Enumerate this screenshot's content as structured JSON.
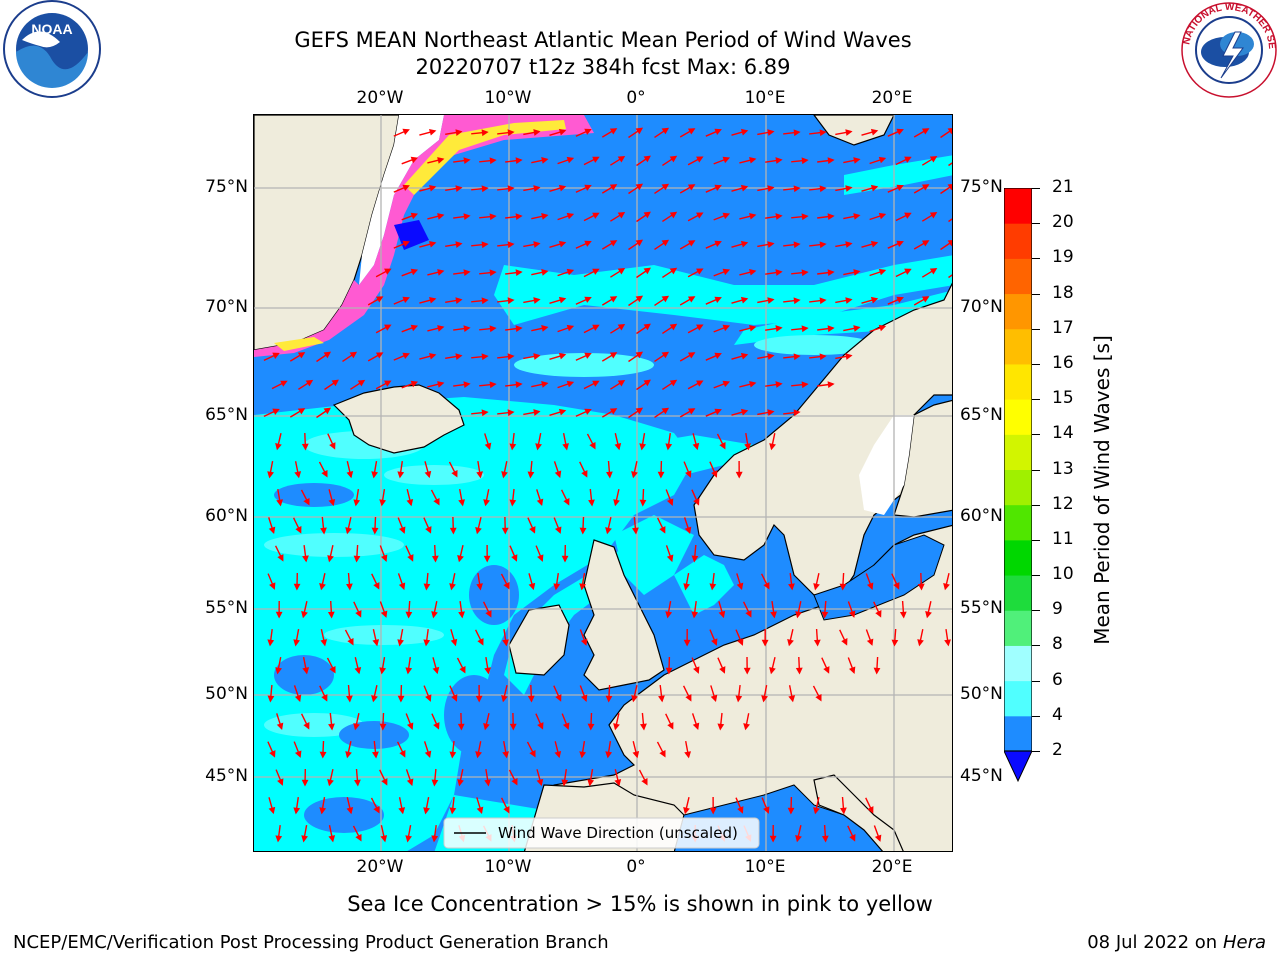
{
  "header": {
    "title_line1": "GEFS MEAN Northeast Atlantic Mean Period of Wind Waves",
    "title_line2": "20220707 t12z 384h fcst   Max: 6.89"
  },
  "logos": {
    "left": "NOAA",
    "right": "NATIONAL WEATHER SERVICE"
  },
  "map": {
    "lon_labels": [
      "20°W",
      "10°W",
      "0°",
      "10°E",
      "20°E"
    ],
    "lat_labels": [
      "75°N",
      "70°N",
      "65°N",
      "60°N",
      "55°N",
      "50°N",
      "45°N"
    ],
    "legend_label": "Wind Wave Direction (unscaled)",
    "colors": {
      "land": "#efecdc",
      "ice_white": "#ffffff",
      "ice_pink": "#ff5ad2",
      "ice_yellow": "#ffea3a",
      "band_0_2": "#0a0aff",
      "band_2_4": "#1e8cff",
      "band_4_6": "#00ffff",
      "band_6_8": "#50ffff",
      "arrow": "#ff0000",
      "grid": "#b4b4b4"
    }
  },
  "colorbar": {
    "title": "Mean Period of Wind Waves [s]",
    "ticks": [
      "2",
      "4",
      "6",
      "8",
      "9",
      "10",
      "11",
      "12",
      "13",
      "14",
      "15",
      "16",
      "17",
      "18",
      "19",
      "20",
      "21"
    ],
    "colors": [
      "#1e8cff",
      "#00ffff",
      "#50ffff",
      "#a0ffff",
      "#50f07a",
      "#1edc3c",
      "#00d700",
      "#50e600",
      "#a0f000",
      "#d2f500",
      "#ffff00",
      "#ffe600",
      "#ffbe00",
      "#ff9600",
      "#ff6400",
      "#ff3c00",
      "#ff0000"
    ],
    "extend_low_color": "#0a0aff"
  },
  "caption": "Sea Ice Concentration > 15% is shown in pink to yellow",
  "footer": {
    "left": "NCEP/EMC/Verification Post Processing Product Generation Branch",
    "date": "08 Jul 2022 on",
    "machine": "Hera"
  }
}
